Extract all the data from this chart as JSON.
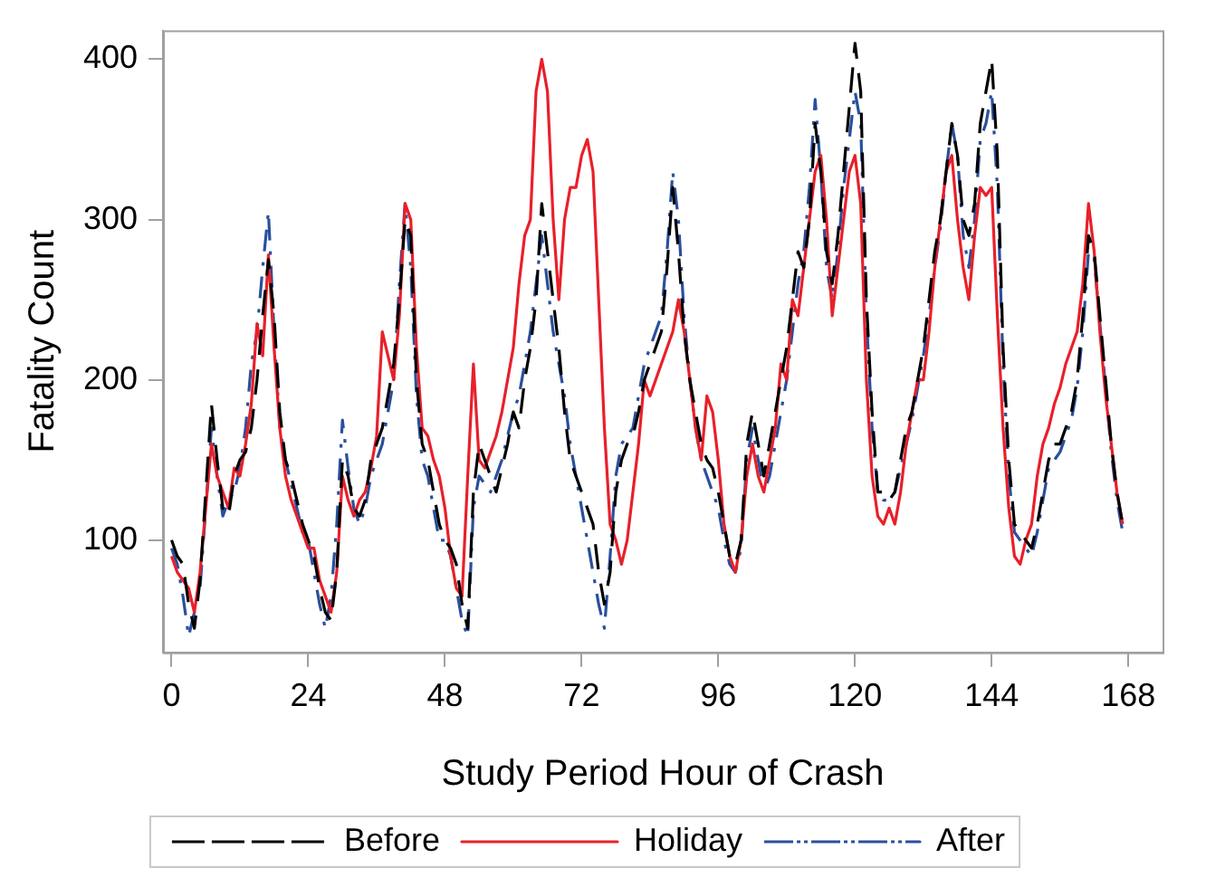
{
  "chart_data": {
    "type": "line",
    "xlabel": "Study Period Hour of Crash",
    "ylabel": "Fatality Count",
    "x": [
      0,
      1,
      2,
      3,
      4,
      5,
      6,
      7,
      8,
      9,
      10,
      11,
      12,
      13,
      14,
      15,
      16,
      17,
      18,
      19,
      20,
      21,
      22,
      23,
      24,
      25,
      26,
      27,
      28,
      29,
      30,
      31,
      32,
      33,
      34,
      35,
      36,
      37,
      38,
      39,
      40,
      41,
      42,
      43,
      44,
      45,
      46,
      47,
      48,
      49,
      50,
      51,
      52,
      53,
      54,
      55,
      56,
      57,
      58,
      59,
      60,
      61,
      62,
      63,
      64,
      65,
      66,
      67,
      68,
      69,
      70,
      71,
      72,
      73,
      74,
      75,
      76,
      77,
      78,
      79,
      80,
      81,
      82,
      83,
      84,
      85,
      86,
      87,
      88,
      89,
      90,
      91,
      92,
      93,
      94,
      95,
      96,
      97,
      98,
      99,
      100,
      101,
      102,
      103,
      104,
      105,
      106,
      107,
      108,
      109,
      110,
      111,
      112,
      113,
      114,
      115,
      116,
      117,
      118,
      119,
      120,
      121,
      122,
      123,
      124,
      125,
      126,
      127,
      128,
      129,
      130,
      131,
      132,
      133,
      134,
      135,
      136,
      137,
      138,
      139,
      140,
      141,
      142,
      143,
      144,
      145,
      146,
      147,
      148,
      149,
      150,
      151,
      152,
      153,
      154,
      155,
      156,
      157,
      158,
      159,
      160,
      161,
      162,
      163,
      164,
      165,
      166,
      167
    ],
    "series": [
      {
        "name": "Before",
        "color": "#000000",
        "line_style": "dashed",
        "values": [
          100,
          90,
          85,
          60,
          45,
          75,
          130,
          185,
          150,
          120,
          115,
          140,
          150,
          155,
          170,
          200,
          240,
          275,
          240,
          180,
          150,
          140,
          125,
          110,
          100,
          90,
          70,
          55,
          50,
          80,
          150,
          140,
          120,
          115,
          125,
          150,
          160,
          170,
          190,
          210,
          250,
          300,
          290,
          200,
          160,
          150,
          130,
          110,
          100,
          95,
          85,
          60,
          45,
          130,
          160,
          150,
          140,
          130,
          145,
          160,
          180,
          170,
          200,
          220,
          250,
          310,
          280,
          250,
          220,
          180,
          150,
          140,
          130,
          120,
          110,
          80,
          60,
          80,
          130,
          150,
          160,
          165,
          180,
          200,
          210,
          220,
          230,
          270,
          320,
          280,
          230,
          200,
          180,
          160,
          150,
          145,
          130,
          110,
          90,
          85,
          100,
          160,
          180,
          160,
          140,
          160,
          180,
          200,
          220,
          250,
          280,
          270,
          300,
          360,
          330,
          280,
          260,
          290,
          330,
          370,
          410,
          380,
          250,
          180,
          130,
          130,
          125,
          130,
          150,
          170,
          180,
          200,
          220,
          250,
          280,
          300,
          330,
          360,
          340,
          300,
          290,
          310,
          360,
          380,
          400,
          340,
          220,
          150,
          110,
          105,
          100,
          95,
          110,
          130,
          150,
          160,
          160,
          170,
          180,
          200,
          240,
          290,
          280,
          240,
          200,
          160,
          130,
          110
        ]
      },
      {
        "name": "Holiday",
        "color": "#e8202a",
        "line_style": "solid",
        "values": [
          90,
          80,
          75,
          70,
          55,
          80,
          120,
          160,
          140,
          130,
          120,
          145,
          140,
          160,
          185,
          235,
          215,
          278,
          220,
          170,
          140,
          125,
          115,
          105,
          95,
          95,
          75,
          65,
          55,
          80,
          140,
          125,
          115,
          125,
          130,
          145,
          165,
          230,
          215,
          200,
          240,
          310,
          300,
          220,
          170,
          165,
          150,
          140,
          120,
          90,
          70,
          65,
          140,
          210,
          150,
          145,
          155,
          165,
          180,
          200,
          220,
          260,
          290,
          300,
          380,
          400,
          380,
          300,
          250,
          300,
          320,
          320,
          340,
          350,
          330,
          250,
          170,
          110,
          100,
          85,
          100,
          130,
          160,
          200,
          190,
          200,
          210,
          220,
          230,
          250,
          230,
          200,
          170,
          150,
          190,
          180,
          150,
          110,
          90,
          80,
          100,
          140,
          160,
          140,
          130,
          150,
          170,
          210,
          200,
          250,
          240,
          270,
          300,
          330,
          340,
          300,
          240,
          270,
          300,
          330,
          340,
          310,
          200,
          140,
          115,
          110,
          120,
          110,
          130,
          160,
          180,
          200,
          200,
          230,
          270,
          300,
          330,
          340,
          300,
          270,
          250,
          290,
          320,
          315,
          320,
          240,
          170,
          120,
          90,
          85,
          100,
          110,
          140,
          160,
          170,
          185,
          195,
          210,
          220,
          230,
          260,
          310,
          280,
          230,
          190,
          160,
          130,
          110
        ]
      },
      {
        "name": "After",
        "color": "#2a4f9c",
        "line_style": "dotted",
        "values": [
          95,
          85,
          65,
          40,
          55,
          70,
          120,
          170,
          140,
          115,
          125,
          130,
          145,
          170,
          210,
          230,
          270,
          305,
          230,
          170,
          150,
          135,
          120,
          105,
          100,
          80,
          60,
          45,
          65,
          110,
          175,
          145,
          120,
          110,
          120,
          140,
          150,
          160,
          180,
          200,
          260,
          310,
          270,
          190,
          150,
          140,
          120,
          100,
          100,
          90,
          70,
          50,
          40,
          120,
          140,
          135,
          130,
          140,
          150,
          165,
          180,
          190,
          210,
          230,
          260,
          290,
          260,
          230,
          210,
          190,
          160,
          140,
          120,
          100,
          80,
          60,
          45,
          90,
          140,
          160,
          165,
          170,
          190,
          210,
          220,
          230,
          240,
          280,
          330,
          300,
          240,
          200,
          170,
          150,
          140,
          130,
          120,
          100,
          85,
          80,
          95,
          150,
          170,
          150,
          130,
          140,
          160,
          180,
          200,
          230,
          260,
          280,
          320,
          375,
          330,
          270,
          250,
          280,
          320,
          350,
          380,
          360,
          240,
          170,
          130,
          125,
          125,
          130,
          145,
          160,
          175,
          195,
          215,
          240,
          270,
          295,
          330,
          360,
          340,
          290,
          270,
          300,
          350,
          360,
          380,
          320,
          210,
          140,
          105,
          100,
          95,
          90,
          105,
          125,
          145,
          150,
          155,
          165,
          175,
          195,
          230,
          280,
          275,
          235,
          195,
          155,
          125,
          105
        ]
      }
    ],
    "xlim": [
      -1.5,
      174
    ],
    "xticks": [
      0,
      24,
      48,
      72,
      96,
      120,
      144,
      168
    ],
    "ylim": [
      30,
      418
    ],
    "yticks": [
      100,
      200,
      300,
      400
    ],
    "grid": false,
    "legend": "bottom",
    "marker": "none"
  }
}
